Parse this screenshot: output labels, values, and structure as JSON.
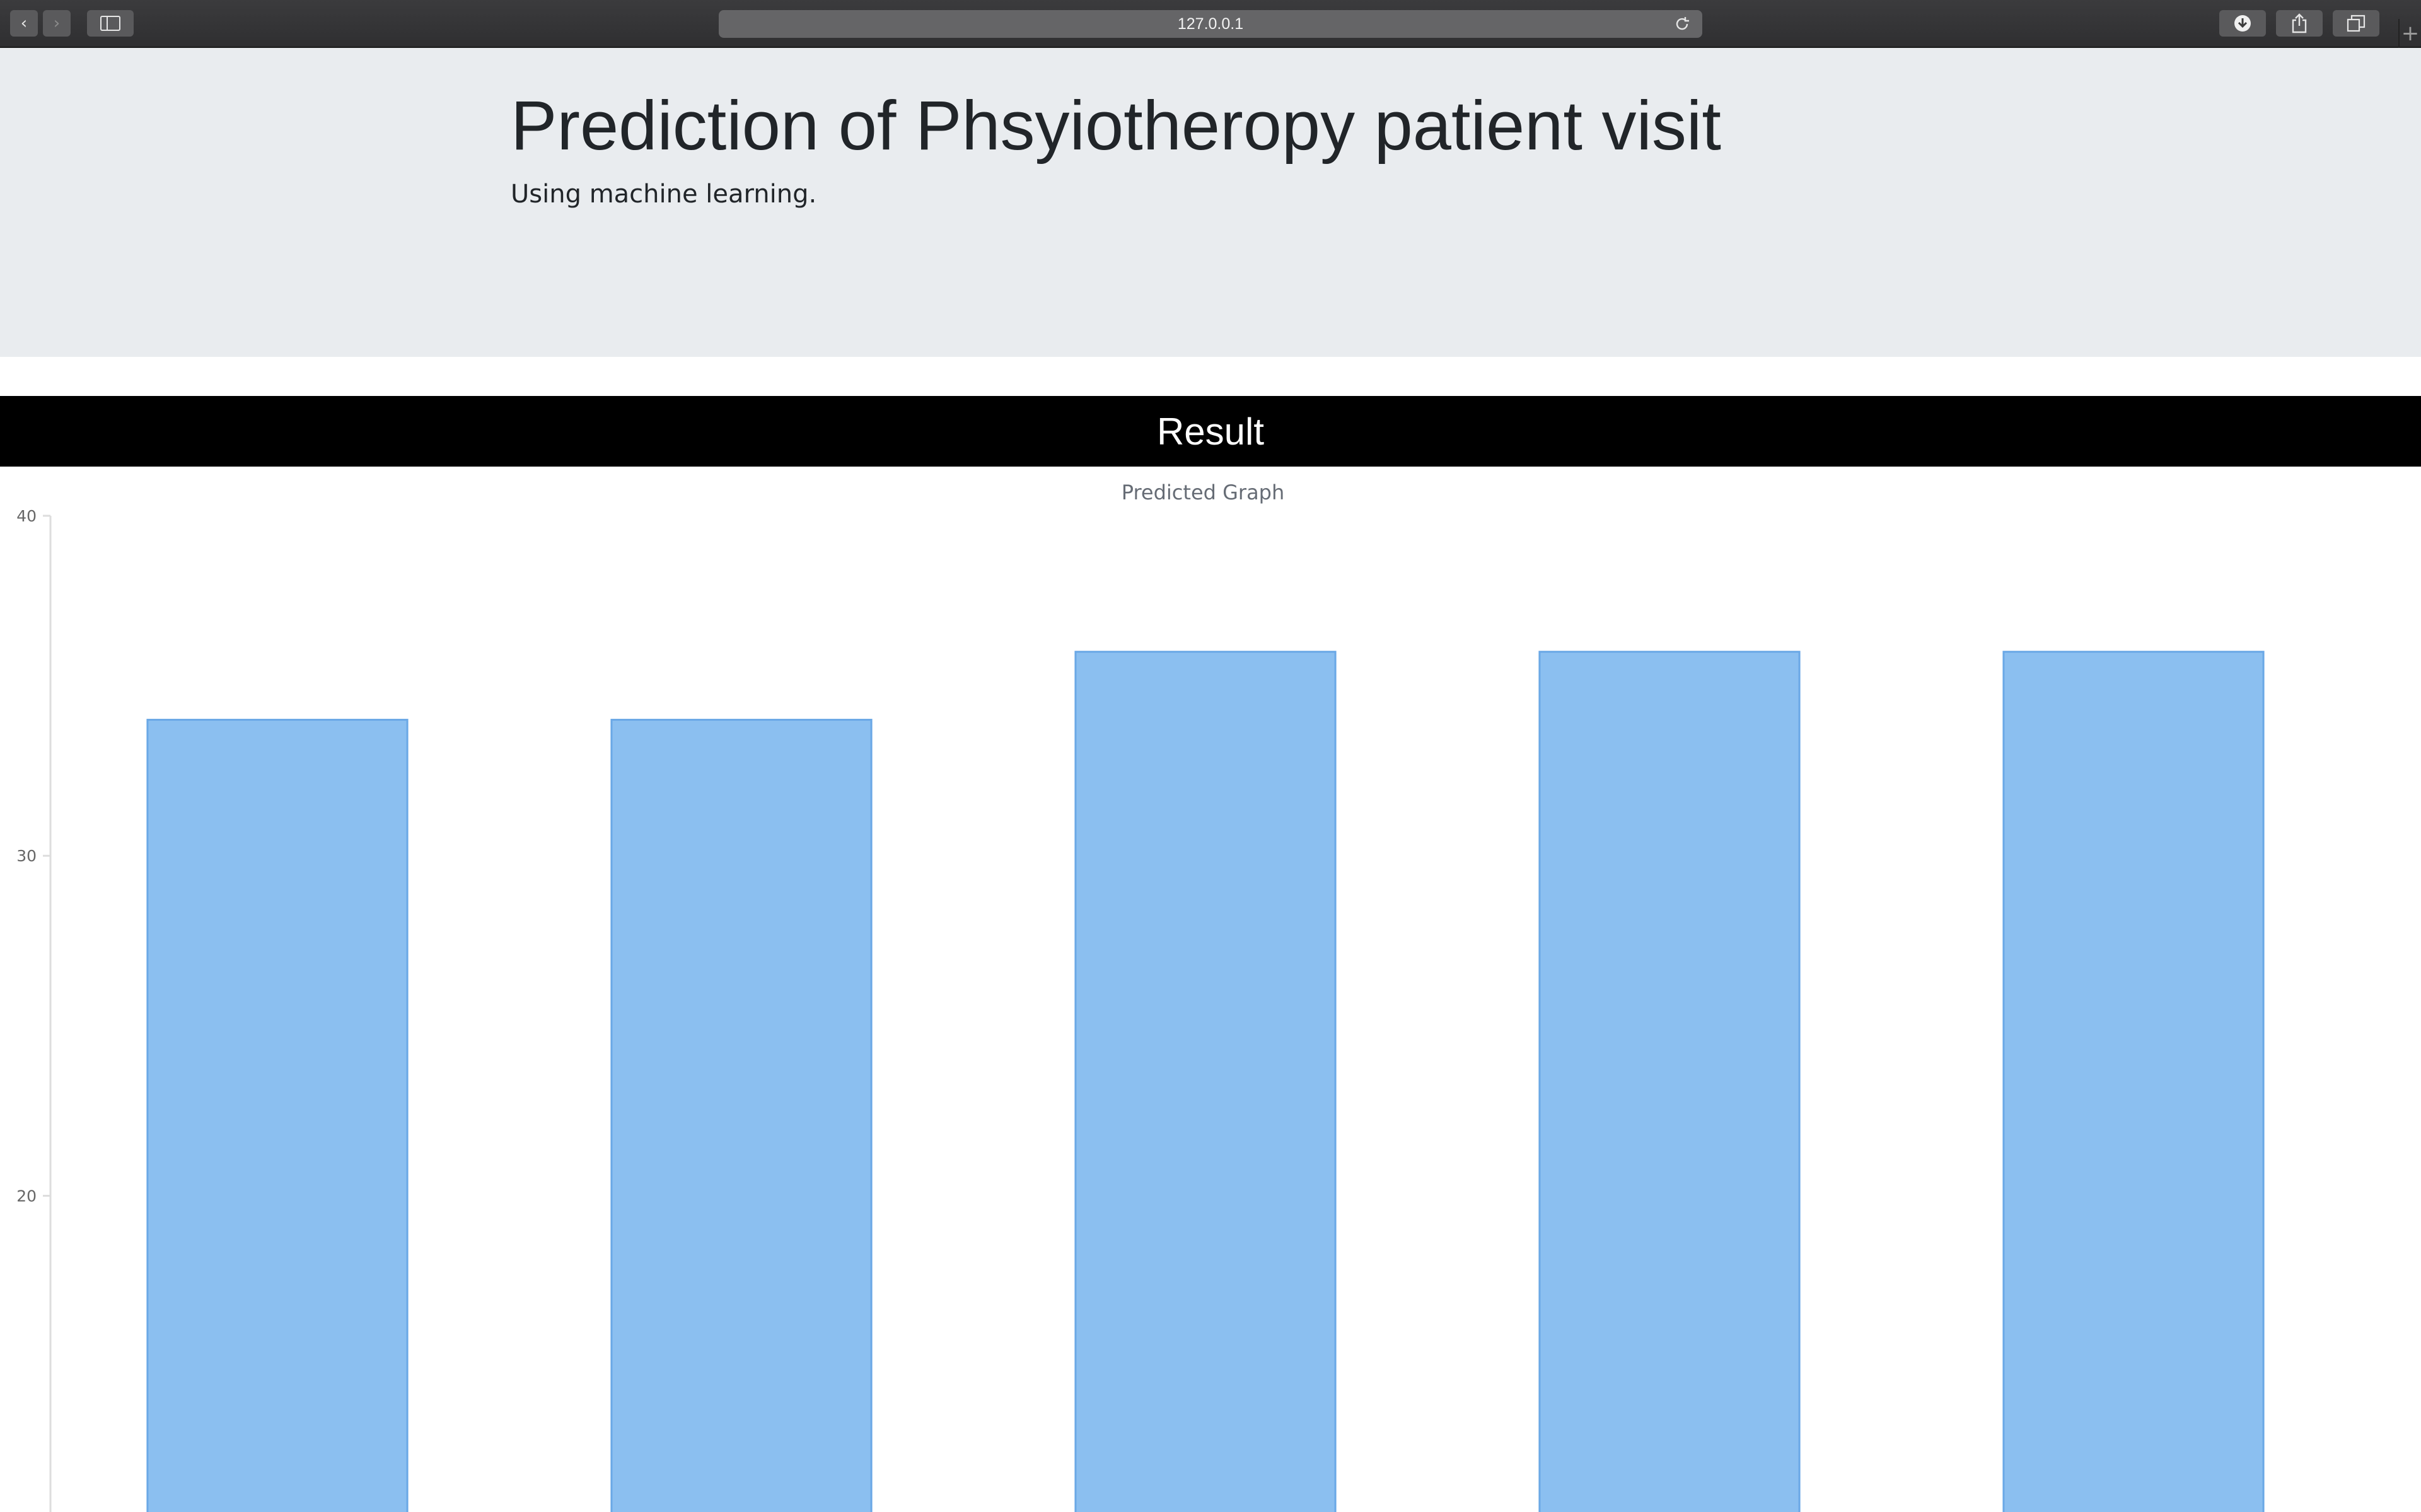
{
  "browser": {
    "address": "127.0.0.1",
    "icons": {
      "back": "chevron-left-icon",
      "forward": "chevron-right-icon",
      "sidebar": "sidebar-icon",
      "reload": "reload-icon",
      "downloads": "download-icon",
      "share": "share-icon",
      "tabs": "tab-overview-icon",
      "new_tab": "plus-icon"
    }
  },
  "header": {
    "title": "Prediction of Phsyiotheropy patient visit",
    "subtitle": "Using machine learning."
  },
  "result": {
    "heading": "Result"
  },
  "chart_data": {
    "type": "bar",
    "title": "Predicted Graph",
    "xlabel": "",
    "ylabel": "",
    "ylim": [
      10.7,
      40
    ],
    "yticks": [
      20,
      30,
      40
    ],
    "values": [
      34,
      34,
      36,
      36,
      36
    ],
    "grid": false,
    "legend": "none",
    "bar_color": "#8bbff0",
    "bar_border_color": "#6aa8e6"
  }
}
